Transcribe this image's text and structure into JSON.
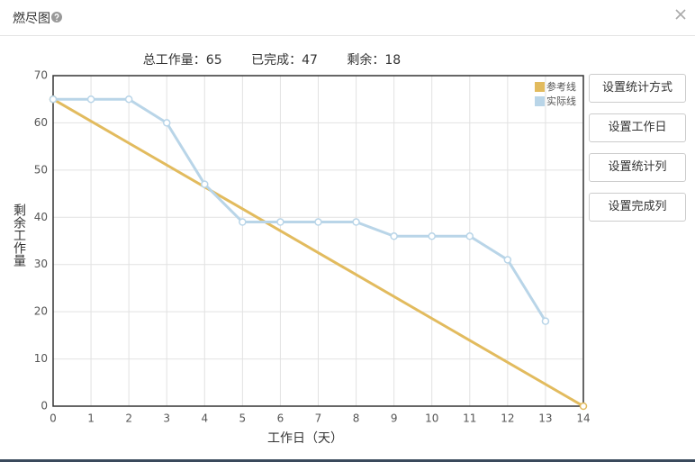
{
  "header": {
    "title": "燃尽图"
  },
  "summary": [
    {
      "label": "总工作量：",
      "value": 65
    },
    {
      "label": "已完成：",
      "value": 47
    },
    {
      "label": "剩余：",
      "value": 18
    }
  ],
  "buttons": [
    "设置统计方式",
    "设置工作日",
    "设置统计列",
    "设置完成列"
  ],
  "chart_data": {
    "type": "line",
    "x_label": "工作日（天）",
    "y_label": "剩余工作量",
    "xlim": [
      0,
      14
    ],
    "xticks": [
      0,
      1,
      2,
      3,
      4,
      5,
      6,
      7,
      8,
      9,
      10,
      11,
      12,
      13,
      14
    ],
    "ylim": [
      0,
      70
    ],
    "yticks": [
      0,
      10,
      20,
      30,
      40,
      50,
      60,
      70
    ],
    "grid": true,
    "legend": "upper right",
    "series": [
      {
        "name": "参考线",
        "color": "#e2bb5e",
        "x": [
          0,
          14
        ],
        "values": [
          65,
          0
        ]
      },
      {
        "name": "实际线",
        "color": "#b9d5e8",
        "x": [
          0,
          1,
          2,
          3,
          4,
          5,
          6,
          7,
          8,
          9,
          10,
          11,
          12,
          13
        ],
        "values": [
          65,
          65,
          65,
          60,
          47,
          39,
          39,
          39,
          39,
          36,
          36,
          36,
          31,
          18
        ]
      }
    ]
  }
}
